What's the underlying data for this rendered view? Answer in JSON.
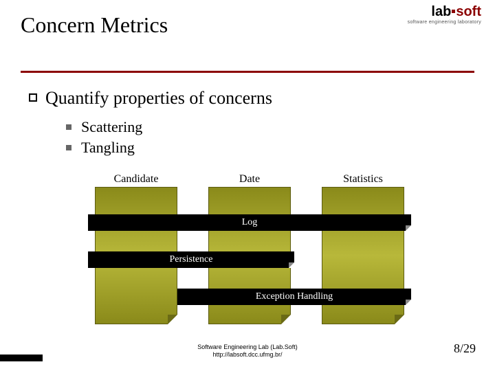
{
  "title": "Concern Metrics",
  "logo": {
    "left": "lab",
    "right": "soft",
    "subtitle": "software engineering laboratory"
  },
  "main_bullet": "Quantify properties of concerns",
  "sub_bullets": [
    "Scattering",
    "Tangling"
  ],
  "diagram": {
    "columns": [
      "Candidate",
      "Date",
      "Statistics"
    ],
    "crosscuts": [
      {
        "label": "Log"
      },
      {
        "label": "Persistence"
      },
      {
        "label": "Exception Handling"
      }
    ],
    "column_color": "#8a8a1a",
    "bar_color": "#000000",
    "bar_text_color": "#ffffff"
  },
  "footer": {
    "line1": "Software Engineering Lab (Lab.Soft)",
    "line2": "http://labsoft.dcc.ufmg.br/"
  },
  "page": "8/29",
  "colors": {
    "divider": "#8b0000",
    "background": "#ffffff"
  }
}
